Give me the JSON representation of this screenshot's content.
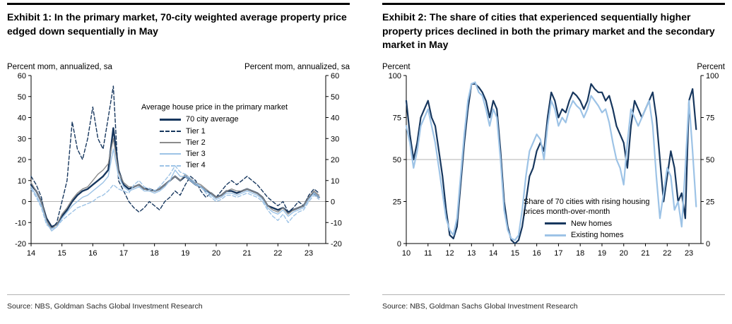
{
  "exhibit1": {
    "title": "Exhibit 1: In the primary market, 70-city weighted average property price edged down sequentially in May",
    "unit_left": "Percent mom, annualized, sa",
    "unit_right": "Percent mom, annualized, sa",
    "source": "Source: NBS, Goldman Sachs Global Investment Research"
  },
  "exhibit2": {
    "title": "Exhibit 2: The share of cities that experienced sequentially higher property prices declined in both the primary market and the secondary market in May",
    "unit_left": "Percent",
    "unit_right": "Percent",
    "source": "Source: NBS, Goldman Sachs Global Investment Research"
  },
  "colors": {
    "navy": "#17375e",
    "light_blue": "#9dc3e6",
    "gray": "#8c8c8c",
    "gridline": "#b3b3b3",
    "axis": "#000000"
  },
  "chart_data": [
    {
      "type": "line",
      "title": "Average house price in the primary market",
      "legend_title": "Average house price in the primary market",
      "xlabel": "",
      "ylabel": "Percent mom, annualized, sa",
      "xlim": [
        2014,
        2023.55
      ],
      "ylim": [
        -20,
        60
      ],
      "y_ticks": [
        -20,
        -10,
        0,
        10,
        20,
        30,
        40,
        50,
        60
      ],
      "x_ticks": [
        2014,
        2015,
        2016,
        2017,
        2018,
        2019,
        2020,
        2021,
        2022,
        2023
      ],
      "x_tick_labels": [
        "14",
        "15",
        "16",
        "17",
        "18",
        "19",
        "20",
        "21",
        "22",
        "23"
      ],
      "gridlines": [
        0
      ],
      "legend_position": "top-center",
      "x_start": 2014.0,
      "x_step": 0.166667,
      "series": [
        {
          "name": "70 city average",
          "color": "#17375e",
          "dash": "solid",
          "width": 2.4,
          "values": [
            8,
            5,
            0,
            -8,
            -12,
            -11,
            -7,
            -4,
            0,
            3,
            5,
            6,
            8,
            10,
            12,
            15,
            35,
            15,
            8,
            6,
            7,
            8,
            6,
            6,
            5,
            6,
            8,
            10,
            12,
            10,
            12,
            10,
            8,
            7,
            5,
            4,
            2,
            3,
            5,
            5,
            4,
            5,
            6,
            5,
            4,
            2,
            -2,
            -3,
            -4,
            -3,
            -5,
            -4,
            -3,
            -2,
            2,
            4,
            2
          ]
        },
        {
          "name": "Tier 1",
          "color": "#17375e",
          "dash": "dashed",
          "width": 1.4,
          "values": [
            12,
            8,
            2,
            -10,
            -13,
            -10,
            0,
            10,
            38,
            25,
            20,
            30,
            45,
            30,
            25,
            40,
            55,
            10,
            5,
            0,
            -3,
            -5,
            -3,
            0,
            -2,
            -4,
            0,
            2,
            5,
            3,
            8,
            12,
            10,
            5,
            2,
            4,
            2,
            5,
            8,
            10,
            8,
            10,
            12,
            10,
            8,
            5,
            2,
            0,
            -2,
            0,
            -5,
            -3,
            0,
            -2,
            3,
            6,
            4
          ]
        },
        {
          "name": "Tier 2",
          "color": "#8c8c8c",
          "dash": "solid",
          "width": 1.4,
          "values": [
            9,
            5,
            0,
            -9,
            -13,
            -11,
            -6,
            -3,
            1,
            4,
            6,
            7,
            10,
            13,
            15,
            18,
            30,
            14,
            9,
            7,
            7,
            8,
            6,
            5,
            5,
            6,
            8,
            10,
            12,
            10,
            13,
            11,
            9,
            8,
            6,
            4,
            2,
            3,
            5,
            6,
            5,
            5,
            6,
            5,
            4,
            2,
            -2,
            -4,
            -5,
            -3,
            -6,
            -4,
            -3,
            -2,
            2,
            5,
            3
          ]
        },
        {
          "name": "Tier 3",
          "color": "#9dc3e6",
          "dash": "solid",
          "width": 1.4,
          "values": [
            7,
            3,
            -2,
            -10,
            -14,
            -12,
            -8,
            -5,
            -2,
            0,
            2,
            3,
            5,
            7,
            9,
            12,
            25,
            12,
            7,
            5,
            6,
            7,
            5,
            5,
            4,
            5,
            7,
            10,
            15,
            12,
            12,
            10,
            8,
            7,
            5,
            3,
            1,
            2,
            4,
            4,
            3,
            4,
            5,
            4,
            3,
            1,
            -3,
            -5,
            -6,
            -4,
            -7,
            -5,
            -4,
            -3,
            1,
            4,
            2
          ]
        },
        {
          "name": "Tier 4",
          "color": "#9dc3e6",
          "dash": "dashed",
          "width": 1.4,
          "values": [
            6,
            2,
            -3,
            -11,
            -13,
            -12,
            -9,
            -7,
            -5,
            -3,
            -2,
            -1,
            0,
            2,
            3,
            5,
            8,
            6,
            5,
            4,
            8,
            10,
            7,
            6,
            5,
            7,
            10,
            13,
            17,
            14,
            13,
            11,
            9,
            7,
            4,
            2,
            0,
            1,
            3,
            3,
            2,
            3,
            4,
            3,
            2,
            0,
            -4,
            -7,
            -9,
            -6,
            -10,
            -7,
            -5,
            -4,
            0,
            3,
            1
          ]
        }
      ]
    },
    {
      "type": "line",
      "title": "Share of 70 cities with rising housing prices month-over-month",
      "legend_caption": "Share of 70 cities with rising housing prices month-over-month",
      "xlabel": "",
      "ylabel": "Percent",
      "xlim": [
        2010,
        2023.55
      ],
      "ylim": [
        0,
        100
      ],
      "y_ticks": [
        0,
        25,
        50,
        75,
        100
      ],
      "x_ticks": [
        2010,
        2011,
        2012,
        2013,
        2014,
        2015,
        2016,
        2017,
        2018,
        2019,
        2020,
        2021,
        2022,
        2023
      ],
      "x_tick_labels": [
        "10",
        "11",
        "12",
        "13",
        "14",
        "15",
        "16",
        "17",
        "18",
        "19",
        "20",
        "21",
        "22",
        "23"
      ],
      "gridlines": [
        50
      ],
      "legend_position": "bottom-center",
      "x_start": 2010.0,
      "x_step": 0.166667,
      "series": [
        {
          "name": "New homes",
          "color": "#17375e",
          "dash": "solid",
          "width": 2.2,
          "values": [
            85,
            65,
            50,
            60,
            75,
            80,
            85,
            75,
            70,
            55,
            40,
            20,
            5,
            3,
            10,
            35,
            60,
            80,
            95,
            95,
            93,
            90,
            85,
            75,
            85,
            80,
            55,
            25,
            10,
            2,
            0,
            2,
            10,
            25,
            40,
            45,
            55,
            60,
            55,
            75,
            90,
            85,
            75,
            80,
            78,
            85,
            90,
            88,
            85,
            80,
            85,
            95,
            92,
            90,
            90,
            85,
            88,
            80,
            70,
            65,
            60,
            45,
            70,
            85,
            80,
            75,
            80,
            85,
            90,
            75,
            50,
            25,
            40,
            55,
            45,
            25,
            30,
            15,
            85,
            92,
            68
          ]
        },
        {
          "name": "Existing homes",
          "color": "#9dc3e6",
          "dash": "solid",
          "width": 2.2,
          "values": [
            70,
            60,
            45,
            55,
            70,
            75,
            80,
            70,
            60,
            45,
            30,
            15,
            8,
            5,
            15,
            40,
            65,
            85,
            95,
            96,
            90,
            88,
            80,
            70,
            80,
            75,
            50,
            20,
            8,
            3,
            2,
            5,
            20,
            40,
            55,
            60,
            65,
            62,
            50,
            70,
            85,
            80,
            70,
            75,
            72,
            80,
            85,
            82,
            80,
            75,
            80,
            88,
            85,
            82,
            78,
            80,
            72,
            60,
            50,
            45,
            35,
            60,
            80,
            75,
            70,
            75,
            80,
            85,
            70,
            40,
            15,
            30,
            45,
            40,
            20,
            25,
            10,
            45,
            85,
            55,
            22
          ]
        }
      ]
    }
  ]
}
